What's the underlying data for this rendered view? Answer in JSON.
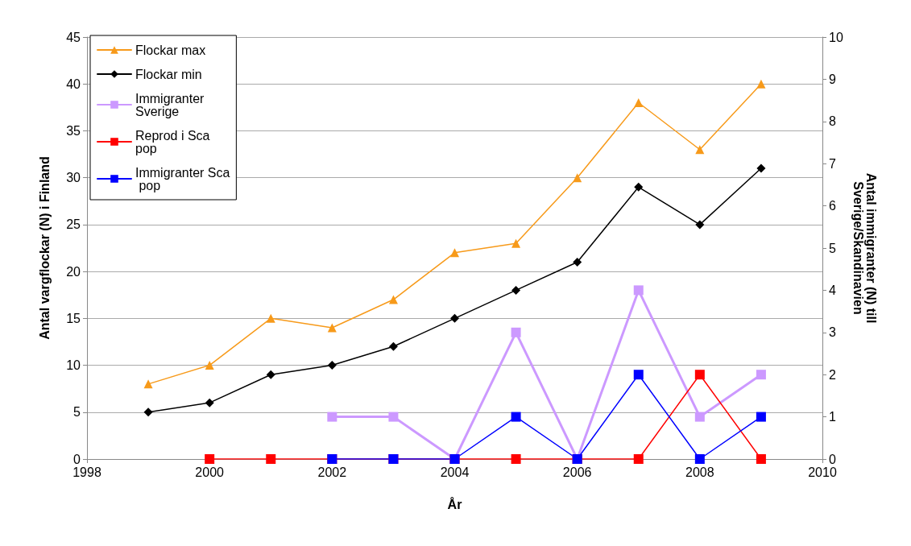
{
  "chart_data": {
    "type": "line",
    "xlabel": "År",
    "ylabel": "Antal vargflockar (N) i Finland",
    "y2label": "Antal immigranter (N) till Sverige/Skandinavien",
    "xlim": [
      1998,
      2010
    ],
    "xticks": [
      1998,
      2000,
      2002,
      2004,
      2006,
      2008,
      2010
    ],
    "ylim": [
      0,
      45
    ],
    "yticks": [
      0,
      5,
      10,
      15,
      20,
      25,
      30,
      35,
      40,
      45
    ],
    "y2lim": [
      0,
      10
    ],
    "y2ticks": [
      0,
      1,
      2,
      3,
      4,
      5,
      6,
      7,
      8,
      9,
      10
    ],
    "grid": "y",
    "legend": "top left",
    "series": [
      {
        "name": "Flockar max",
        "color": "#f79a1a",
        "marker": "triangle",
        "x": [
          1999,
          2000,
          2001,
          2002,
          2003,
          2004,
          2005,
          2006,
          2007,
          2008,
          2009
        ],
        "values": [
          8,
          10,
          15,
          14,
          17,
          22,
          23,
          30,
          38,
          33,
          40
        ]
      },
      {
        "name": "Flockar min",
        "color": "#000000",
        "marker": "diamond",
        "x": [
          1999,
          2000,
          2001,
          2002,
          2003,
          2004,
          2005,
          2006,
          2007,
          2008,
          2009
        ],
        "values": [
          5,
          6,
          9,
          10,
          12,
          15,
          18,
          21,
          29,
          25,
          31
        ]
      },
      {
        "name": "Immigranter Sverige",
        "color": "#cc99ff",
        "marker": "square",
        "axis": "y2",
        "x": [
          2002,
          2003,
          2004,
          2005,
          2006,
          2007,
          2008,
          2009
        ],
        "values": [
          1,
          1,
          0,
          3,
          0,
          4,
          1,
          2
        ]
      },
      {
        "name": "Reprod i Sca pop",
        "color": "#ff0000",
        "marker": "square",
        "axis": "y2",
        "x": [
          2000,
          2001,
          2002,
          2003,
          2004,
          2005,
          2006,
          2007,
          2008,
          2009
        ],
        "values": [
          0,
          0,
          0,
          0,
          0,
          0,
          0,
          0,
          2,
          0
        ]
      },
      {
        "name": "Immigranter Sca pop",
        "color": "#0000ff",
        "marker": "square",
        "axis": "y2",
        "x": [
          2002,
          2003,
          2004,
          2005,
          2006,
          2007,
          2008,
          2009
        ],
        "values": [
          0,
          0,
          0,
          1,
          0,
          2,
          0,
          1
        ]
      }
    ]
  }
}
